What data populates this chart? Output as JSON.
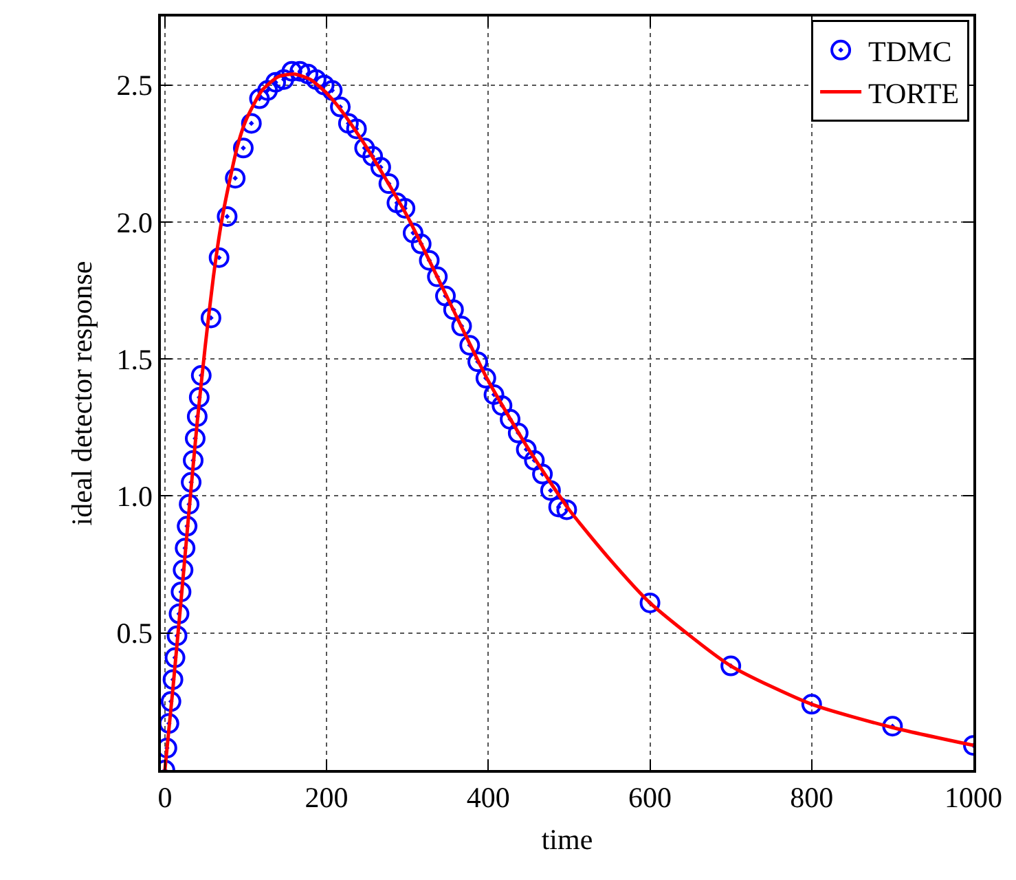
{
  "chart_data": {
    "type": "scatter",
    "xlabel": "time",
    "ylabel": "ideal detector response",
    "xlim": [
      -5,
      1000
    ],
    "ylim": [
      0,
      2.75
    ],
    "xticks": [
      0,
      200,
      400,
      600,
      800,
      1000
    ],
    "yticks": [
      {
        "value": 0.5,
        "label": "0.5"
      },
      {
        "value": 1.0,
        "label": "1.0"
      },
      {
        "value": 1.5,
        "label": "1.5"
      },
      {
        "value": 2.0,
        "label": "2.0"
      },
      {
        "value": 2.5,
        "label": "2.5"
      }
    ],
    "grid": true,
    "legend": "top right",
    "series": [
      {
        "name": "TDMC",
        "marker": "circle",
        "color": "#0000ff",
        "x": [
          0,
          2.5,
          5,
          7.5,
          10,
          12.5,
          15,
          17.5,
          20,
          22.5,
          25,
          27.5,
          30,
          32.5,
          35,
          37.5,
          40,
          42.5,
          45,
          57,
          67,
          77,
          87,
          97,
          107,
          117,
          127,
          137,
          147,
          157,
          167,
          177,
          187,
          197,
          207,
          217,
          227,
          237,
          247,
          257,
          267,
          277,
          287,
          297,
          307,
          317,
          327,
          337,
          347,
          357,
          367,
          377,
          387,
          397,
          407,
          417,
          427,
          437,
          447,
          457,
          467,
          477,
          487,
          497,
          600,
          700,
          800,
          900,
          1000
        ],
        "values": [
          0,
          0.08,
          0.17,
          0.25,
          0.33,
          0.41,
          0.49,
          0.57,
          0.65,
          0.73,
          0.81,
          0.89,
          0.97,
          1.05,
          1.13,
          1.21,
          1.29,
          1.36,
          1.44,
          1.65,
          1.87,
          2.02,
          2.16,
          2.27,
          2.36,
          2.45,
          2.48,
          2.51,
          2.52,
          2.55,
          2.55,
          2.54,
          2.52,
          2.5,
          2.48,
          2.42,
          2.36,
          2.34,
          2.27,
          2.24,
          2.2,
          2.14,
          2.07,
          2.05,
          1.96,
          1.92,
          1.86,
          1.8,
          1.73,
          1.68,
          1.62,
          1.55,
          1.49,
          1.43,
          1.37,
          1.33,
          1.28,
          1.23,
          1.17,
          1.13,
          1.08,
          1.02,
          0.96,
          0.95,
          0.61,
          0.38,
          0.24,
          0.16,
          0.09
        ]
      },
      {
        "name": "TORTE",
        "type": "line",
        "line_style": "solid",
        "color": "#ff0000",
        "x": [
          0,
          10,
          20,
          30,
          40,
          50,
          60,
          70,
          80,
          90,
          100,
          120,
          140,
          160,
          180,
          200,
          220,
          250,
          300,
          350,
          400,
          450,
          500,
          550,
          600,
          700,
          800,
          900,
          1000
        ],
        "values": [
          0,
          0.3,
          0.62,
          0.95,
          1.27,
          1.55,
          1.8,
          2.0,
          2.15,
          2.28,
          2.37,
          2.48,
          2.53,
          2.54,
          2.52,
          2.47,
          2.4,
          2.27,
          2.02,
          1.72,
          1.42,
          1.17,
          0.95,
          0.77,
          0.61,
          0.38,
          0.24,
          0.155,
          0.09
        ]
      }
    ]
  }
}
